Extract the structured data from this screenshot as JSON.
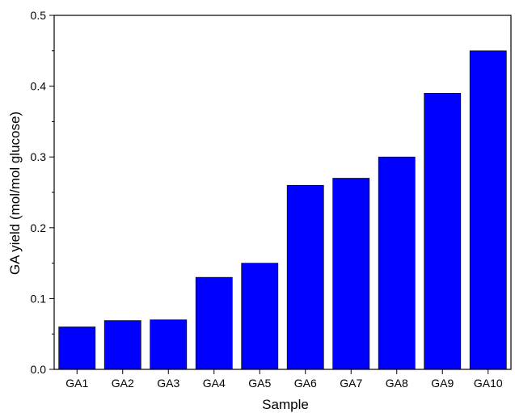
{
  "chart_data": {
    "type": "bar",
    "title": "",
    "xlabel": "Sample",
    "ylabel": "GA yield (mol/mol glucose)",
    "categories": [
      "GA1",
      "GA2",
      "GA3",
      "GA4",
      "GA5",
      "GA6",
      "GA7",
      "GA8",
      "GA9",
      "GA10"
    ],
    "values": [
      0.06,
      0.069,
      0.07,
      0.13,
      0.15,
      0.26,
      0.27,
      0.3,
      0.39,
      0.45
    ],
    "ylim": [
      0,
      0.5
    ],
    "y_ticks": [
      "0.0",
      "0.1",
      "0.2",
      "0.3",
      "0.4",
      "0.5"
    ],
    "grid": false,
    "legend": "none",
    "bar_color": "#0000ff"
  }
}
